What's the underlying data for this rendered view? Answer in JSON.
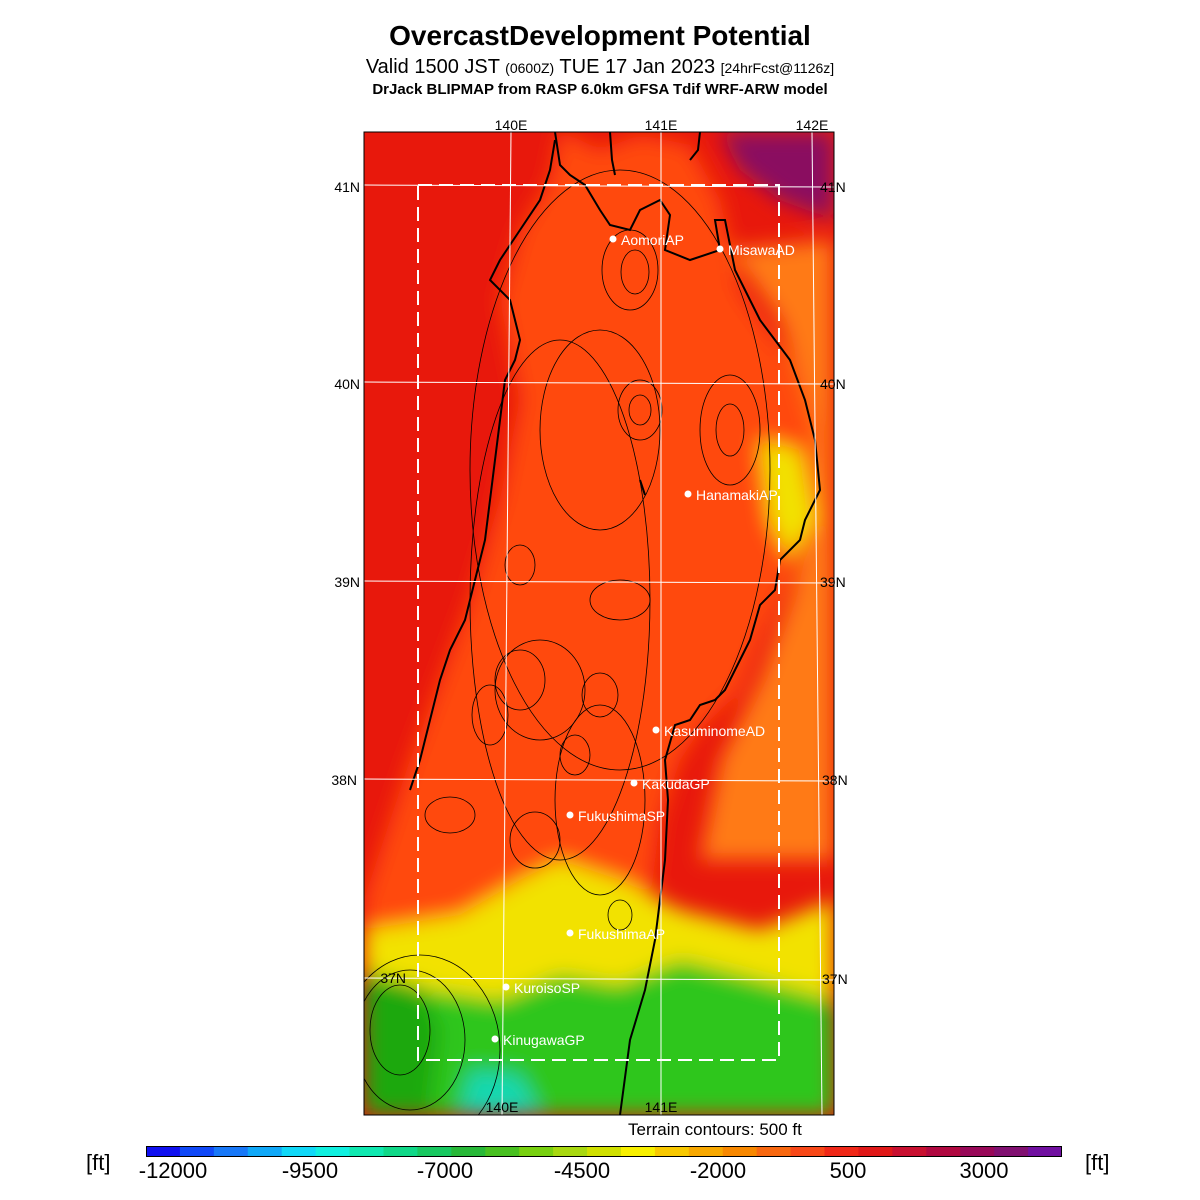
{
  "header": {
    "title": "OvercastDevelopment Potential",
    "valid_prefix": "Valid 1500 JST",
    "valid_utc": "(0600Z)",
    "valid_date": "TUE 17 Jan 2023",
    "forecast_tag": "[24hrFcst@1126z]",
    "model_line": "DrJack BLIPMAP from RASP 6.0km GFSA Tdif WRF-ARW model"
  },
  "map": {
    "lon_labels": [
      "140E",
      "141E",
      "142E"
    ],
    "lat_labels": [
      "41N",
      "40N",
      "39N",
      "38N",
      "37N"
    ],
    "colors": {
      "sea": "#e8180c",
      "land_high": "#ff4a0e",
      "land_mid": "#ff7a12",
      "yellow": "#f2e200",
      "green": "#2ec61a",
      "dark_green": "#1aa80c",
      "cyan": "#18d8b0",
      "purple": "#8a1060",
      "coast": "#000000",
      "grid": "#ffffff"
    },
    "stations": [
      {
        "name": "AomoriAP"
      },
      {
        "name": "MisawaAD"
      },
      {
        "name": "HanamakiAP"
      },
      {
        "name": "KasuminomeAD"
      },
      {
        "name": "KakudaGP"
      },
      {
        "name": "FukushimaSP"
      },
      {
        "name": "FukushimaAP"
      },
      {
        "name": "KuroisoSP"
      },
      {
        "name": "KinugawaGP"
      }
    ],
    "contour_note": "Terrain contours: 500 ft"
  },
  "colorbar": {
    "unit": "[ft]",
    "tick_labels": [
      "-12000",
      "-9500",
      "-7000",
      "-4500",
      "-2000",
      "500",
      "3000"
    ],
    "colors": [
      "#1010f0",
      "#1048f8",
      "#1878f8",
      "#10a8f8",
      "#10d8f8",
      "#10f0e0",
      "#10e8b0",
      "#10d888",
      "#18c860",
      "#28b838",
      "#48c020",
      "#78d010",
      "#a8d810",
      "#d0e000",
      "#f8f000",
      "#f8c800",
      "#f8a800",
      "#f88800",
      "#f86810",
      "#f84818",
      "#f02818",
      "#e01818",
      "#c81030",
      "#b00840",
      "#980858",
      "#801070",
      "#7010a0"
    ]
  }
}
